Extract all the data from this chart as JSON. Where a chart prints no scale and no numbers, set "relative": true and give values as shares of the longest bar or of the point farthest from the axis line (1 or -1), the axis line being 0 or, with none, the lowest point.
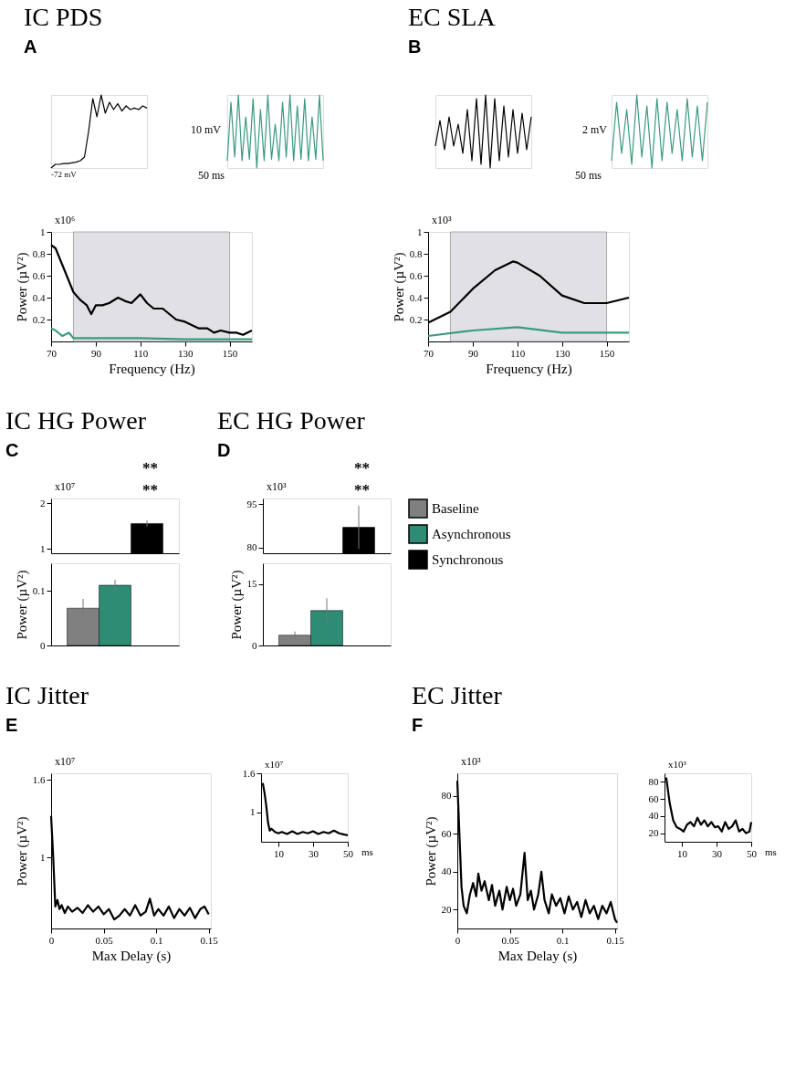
{
  "chart_data": [
    {
      "type": "line",
      "title": "IC PDS",
      "relative": true,
      "tick_labels": false,
      "categories": [
        null,
        null,
        null,
        null,
        null,
        null,
        null,
        null,
        null,
        null,
        null,
        null,
        null,
        null,
        null,
        null,
        null,
        null,
        null,
        null,
        null,
        null,
        null,
        null
      ],
      "series": [
        {
          "color": "#000000",
          "values": [
            0,
            0.05,
            0.05,
            0.06,
            0.06,
            0.07,
            0.08,
            0.1,
            0.15,
            0.5,
            0.95,
            0.7,
            1.0,
            0.75,
            0.9,
            0.8,
            0.88,
            0.78,
            0.85,
            0.8,
            0.82,
            0.8,
            0.85,
            0.82
          ]
        }
      ],
      "annotations": [
        "A",
        "-72 mV"
      ]
    },
    {
      "type": "line",
      "relative": true,
      "tick_labels": false,
      "categories": [
        null,
        null,
        null,
        null,
        null,
        null,
        null,
        null,
        null,
        null,
        null,
        null,
        null,
        null,
        null,
        null,
        null,
        null,
        null,
        null,
        null,
        null,
        null,
        null,
        null,
        null,
        null
      ],
      "series": [
        {
          "color": "#3a9a80",
          "values": [
            0.1,
            0.9,
            0.15,
            1.0,
            0.1,
            0.7,
            0.12,
            0.95,
            0,
            0.8,
            0.1,
            1.0,
            0.12,
            0.6,
            0.1,
            0.9,
            0.15,
            1.0,
            0.1,
            0.85,
            0.12,
            0.95,
            0.1,
            0.7,
            0.12,
            1.0,
            0.1
          ]
        }
      ],
      "annotations": [
        "10 mV",
        "50 ms"
      ]
    },
    {
      "type": "line",
      "title": "EC SLA",
      "relative": true,
      "tick_labels": false,
      "categories": [
        null,
        null,
        null,
        null,
        null,
        null,
        null,
        null,
        null,
        null,
        null,
        null,
        null,
        null,
        null,
        null,
        null,
        null,
        null,
        null,
        null,
        null
      ],
      "series": [
        {
          "color": "#000000",
          "values": [
            0.3,
            0.65,
            0.25,
            0.7,
            0.3,
            0.6,
            0.2,
            0.8,
            0.1,
            0.95,
            0.05,
            1.0,
            0,
            0.95,
            0.1,
            0.85,
            0.15,
            0.8,
            0.2,
            0.75,
            0.25,
            0.7
          ]
        }
      ],
      "annotations": [
        "B"
      ]
    },
    {
      "type": "line",
      "relative": true,
      "tick_labels": false,
      "categories": [
        null,
        null,
        null,
        null,
        null,
        null,
        null,
        null,
        null,
        null,
        null,
        null,
        null,
        null,
        null,
        null,
        null,
        null,
        null,
        null
      ],
      "series": [
        {
          "color": "#3a9a80",
          "values": [
            0.1,
            0.9,
            0.2,
            0.8,
            0.05,
            1.0,
            0.15,
            0.85,
            0,
            0.95,
            0.1,
            0.9,
            0.2,
            0.8,
            0.1,
            0.95,
            0.15,
            0.85,
            0.1,
            0.9
          ]
        }
      ],
      "annotations": [
        "2 mV",
        "50 ms"
      ]
    },
    {
      "type": "line",
      "xlabel": "Frequency (Hz)",
      "ylabel": "Power (µV²)",
      "xlim": [
        70,
        160
      ],
      "xticks": [
        70,
        90,
        110,
        130,
        150
      ],
      "ylim": [
        0,
        1
      ],
      "yticks": [
        0.2,
        0.4,
        0.6,
        0.8,
        1
      ],
      "bands": [
        {
          "axis": "x",
          "from": 80,
          "to": 150,
          "color": "#e1e1e5"
        }
      ],
      "series": [
        {
          "color": "#000000",
          "x": [
            70,
            72,
            75,
            78,
            80,
            83,
            86,
            88,
            90,
            93,
            96,
            100,
            103,
            106,
            110,
            113,
            116,
            120,
            123,
            126,
            130,
            133,
            136,
            140,
            143,
            146,
            150,
            153,
            156,
            160
          ],
          "values": [
            0.88,
            0.85,
            0.7,
            0.55,
            0.45,
            0.38,
            0.33,
            0.25,
            0.33,
            0.33,
            0.35,
            0.4,
            0.37,
            0.35,
            0.43,
            0.35,
            0.3,
            0.3,
            0.25,
            0.2,
            0.18,
            0.15,
            0.12,
            0.12,
            0.08,
            0.1,
            0.08,
            0.08,
            0.06,
            0.1
          ]
        },
        {
          "color": "#3a9a80",
          "x": [
            70,
            72,
            75,
            78,
            80,
            90,
            110,
            130,
            160
          ],
          "values": [
            0.12,
            0.1,
            0.05,
            0.08,
            0.03,
            0.03,
            0.03,
            0.02,
            0.02
          ]
        }
      ],
      "annotations": [
        "x10⁶"
      ]
    },
    {
      "type": "line",
      "xlabel": "Frequency (Hz)",
      "ylabel": "Power (µV²)",
      "xlim": [
        70,
        160
      ],
      "xticks": [
        70,
        90,
        110,
        130,
        150
      ],
      "ylim": [
        0,
        1
      ],
      "yticks": [
        0.2,
        0.4,
        0.6,
        0.8,
        1
      ],
      "bands": [
        {
          "axis": "x",
          "from": 80,
          "to": 150,
          "color": "#e1e1e5"
        }
      ],
      "series": [
        {
          "color": "#000000",
          "x": [
            70,
            80,
            90,
            100,
            108,
            110,
            120,
            130,
            140,
            150,
            160
          ],
          "values": [
            0.17,
            0.27,
            0.48,
            0.65,
            0.73,
            0.72,
            0.6,
            0.42,
            0.35,
            0.35,
            0.4
          ]
        },
        {
          "color": "#3a9a80",
          "x": [
            70,
            90,
            110,
            130,
            160
          ],
          "values": [
            0.05,
            0.1,
            0.13,
            0.08,
            0.08
          ]
        }
      ],
      "annotations": [
        "x10³"
      ]
    },
    {
      "type": "bar",
      "title": "IC HG Power",
      "categories": [
        null
      ],
      "tick_labels": "y",
      "ylim": [
        0.9,
        2.1
      ],
      "yticks": [
        1,
        2
      ],
      "legend": "right",
      "series": [
        {
          "name": "Baseline",
          "color": "#808080",
          "values": [
            null
          ]
        },
        {
          "name": "Asynchronous",
          "color": "#2e8b74",
          "values": [
            null
          ]
        },
        {
          "name": "Synchronous",
          "color": "#000000",
          "values": [
            1.55
          ],
          "errors": [
            0.07
          ]
        }
      ],
      "annotations": [
        "C",
        "x10⁷",
        "**",
        "**"
      ]
    },
    {
      "type": "bar",
      "categories": [
        null
      ],
      "tick_labels": "y",
      "ylabel": "Power (µV²)",
      "ylim": [
        0,
        0.15
      ],
      "yticks": [
        0,
        0.1
      ],
      "series": [
        {
          "color": "#808080",
          "values": [
            0.068
          ],
          "errors": [
            0.017
          ]
        },
        {
          "color": "#2e8b74",
          "values": [
            0.11
          ],
          "errors": [
            0.01
          ]
        },
        {
          "color": "#000000",
          "values": [
            null
          ]
        }
      ]
    },
    {
      "type": "bar",
      "title": "EC HG Power",
      "categories": [
        null
      ],
      "tick_labels": "y",
      "ylim": [
        78,
        97
      ],
      "yticks": [
        80,
        95
      ],
      "series": [
        {
          "color": "#808080",
          "values": [
            null
          ]
        },
        {
          "color": "#2e8b74",
          "values": [
            null
          ]
        },
        {
          "color": "#000000",
          "values": [
            87
          ],
          "errors": [
            7.5
          ]
        }
      ],
      "annotations": [
        "D",
        "x10³",
        "**",
        "**"
      ]
    },
    {
      "type": "bar",
      "categories": [
        null
      ],
      "tick_labels": "y",
      "ylabel": "Power (µV²)",
      "ylim": [
        0,
        20
      ],
      "yticks": [
        0,
        15
      ],
      "series": [
        {
          "color": "#808080",
          "values": [
            2.5
          ],
          "errors": [
            0.9
          ]
        },
        {
          "color": "#2e8b74",
          "values": [
            8.5
          ],
          "errors": [
            3
          ]
        },
        {
          "color": "#000000",
          "values": [
            null
          ]
        }
      ]
    },
    {
      "type": "line",
      "title": "IC Jitter",
      "xlabel": "Max Delay (s)",
      "ylabel": "Power (µV²)",
      "xlim": [
        0,
        0.152
      ],
      "xticks": [
        0,
        0.05,
        0.1,
        0.15
      ],
      "ylim": [
        0.45,
        1.65
      ],
      "yticks": [
        1,
        1.6
      ],
      "series": [
        {
          "color": "#000000",
          "x": [
            0,
            0.002,
            0.004,
            0.006,
            0.008,
            0.01,
            0.013,
            0.016,
            0.02,
            0.025,
            0.03,
            0.035,
            0.04,
            0.045,
            0.05,
            0.055,
            0.06,
            0.065,
            0.07,
            0.075,
            0.08,
            0.085,
            0.09,
            0.094,
            0.098,
            0.102,
            0.107,
            0.112,
            0.117,
            0.122,
            0.127,
            0.132,
            0.137,
            0.142,
            0.146,
            0.15
          ],
          "values": [
            1.32,
            1.0,
            0.62,
            0.67,
            0.6,
            0.63,
            0.57,
            0.62,
            0.58,
            0.61,
            0.57,
            0.63,
            0.58,
            0.62,
            0.56,
            0.6,
            0.52,
            0.55,
            0.6,
            0.55,
            0.63,
            0.55,
            0.58,
            0.68,
            0.55,
            0.6,
            0.55,
            0.62,
            0.53,
            0.6,
            0.55,
            0.61,
            0.53,
            0.6,
            0.62,
            0.56
          ]
        }
      ],
      "annotations": [
        "E",
        "x10⁷"
      ]
    },
    {
      "type": "line",
      "xlim": [
        0,
        50
      ],
      "xticks": [
        10,
        30,
        50
      ],
      "ylim": [
        0.55,
        1.6
      ],
      "yticks": [
        1,
        1.6
      ],
      "series": [
        {
          "color": "#000000",
          "x": [
            1,
            2,
            3,
            4,
            5,
            6,
            8,
            10,
            12,
            15,
            18,
            21,
            24,
            27,
            30,
            33,
            36,
            39,
            42,
            45,
            48,
            50
          ],
          "values": [
            1.45,
            1.3,
            1.1,
            0.85,
            0.72,
            0.75,
            0.7,
            0.68,
            0.7,
            0.67,
            0.71,
            0.67,
            0.7,
            0.68,
            0.71,
            0.67,
            0.7,
            0.68,
            0.72,
            0.68,
            0.66,
            0.65
          ]
        }
      ],
      "annotations": [
        "x10⁷",
        "ms"
      ]
    },
    {
      "type": "line",
      "title": "EC Jitter",
      "xlabel": "Max Delay (s)",
      "ylabel": "Power (µV²)",
      "xlim": [
        0,
        0.152
      ],
      "xticks": [
        0,
        0.05,
        0.1,
        0.15
      ],
      "ylim": [
        10,
        92
      ],
      "yticks": [
        20,
        40,
        60,
        80
      ],
      "series": [
        {
          "color": "#000000",
          "x": [
            0,
            0.002,
            0.004,
            0.006,
            0.009,
            0.012,
            0.015,
            0.018,
            0.02,
            0.023,
            0.026,
            0.03,
            0.033,
            0.036,
            0.04,
            0.043,
            0.047,
            0.05,
            0.053,
            0.056,
            0.06,
            0.064,
            0.067,
            0.07,
            0.073,
            0.077,
            0.08,
            0.083,
            0.087,
            0.09,
            0.094,
            0.098,
            0.102,
            0.106,
            0.11,
            0.114,
            0.118,
            0.122,
            0.126,
            0.13,
            0.134,
            0.138,
            0.142,
            0.146,
            0.15,
            0.152
          ],
          "values": [
            88,
            60,
            32,
            22,
            18,
            28,
            34,
            27,
            39,
            30,
            35,
            25,
            33,
            22,
            30,
            20,
            32,
            25,
            31,
            22,
            28,
            50,
            25,
            30,
            20,
            28,
            40,
            25,
            18,
            28,
            22,
            26,
            18,
            27,
            20,
            24,
            16,
            25,
            18,
            22,
            15,
            22,
            18,
            24,
            15,
            13
          ]
        }
      ],
      "annotations": [
        "F",
        "x10³"
      ]
    },
    {
      "type": "line",
      "xlim": [
        0,
        50
      ],
      "xticks": [
        10,
        30,
        50
      ],
      "ylim": [
        10,
        90
      ],
      "yticks": [
        20,
        40,
        60,
        80
      ],
      "series": [
        {
          "color": "#000000",
          "x": [
            1,
            3,
            5,
            7,
            9,
            11,
            13,
            15,
            17,
            19,
            21,
            23,
            25,
            27,
            29,
            31,
            33,
            35,
            37,
            39,
            41,
            43,
            45,
            47,
            49,
            50
          ],
          "values": [
            85,
            55,
            35,
            27,
            25,
            22,
            30,
            33,
            28,
            38,
            30,
            35,
            28,
            33,
            27,
            28,
            22,
            33,
            25,
            28,
            35,
            22,
            25,
            20,
            22,
            33
          ]
        }
      ],
      "annotations": [
        "x10³",
        "ms"
      ]
    }
  ]
}
